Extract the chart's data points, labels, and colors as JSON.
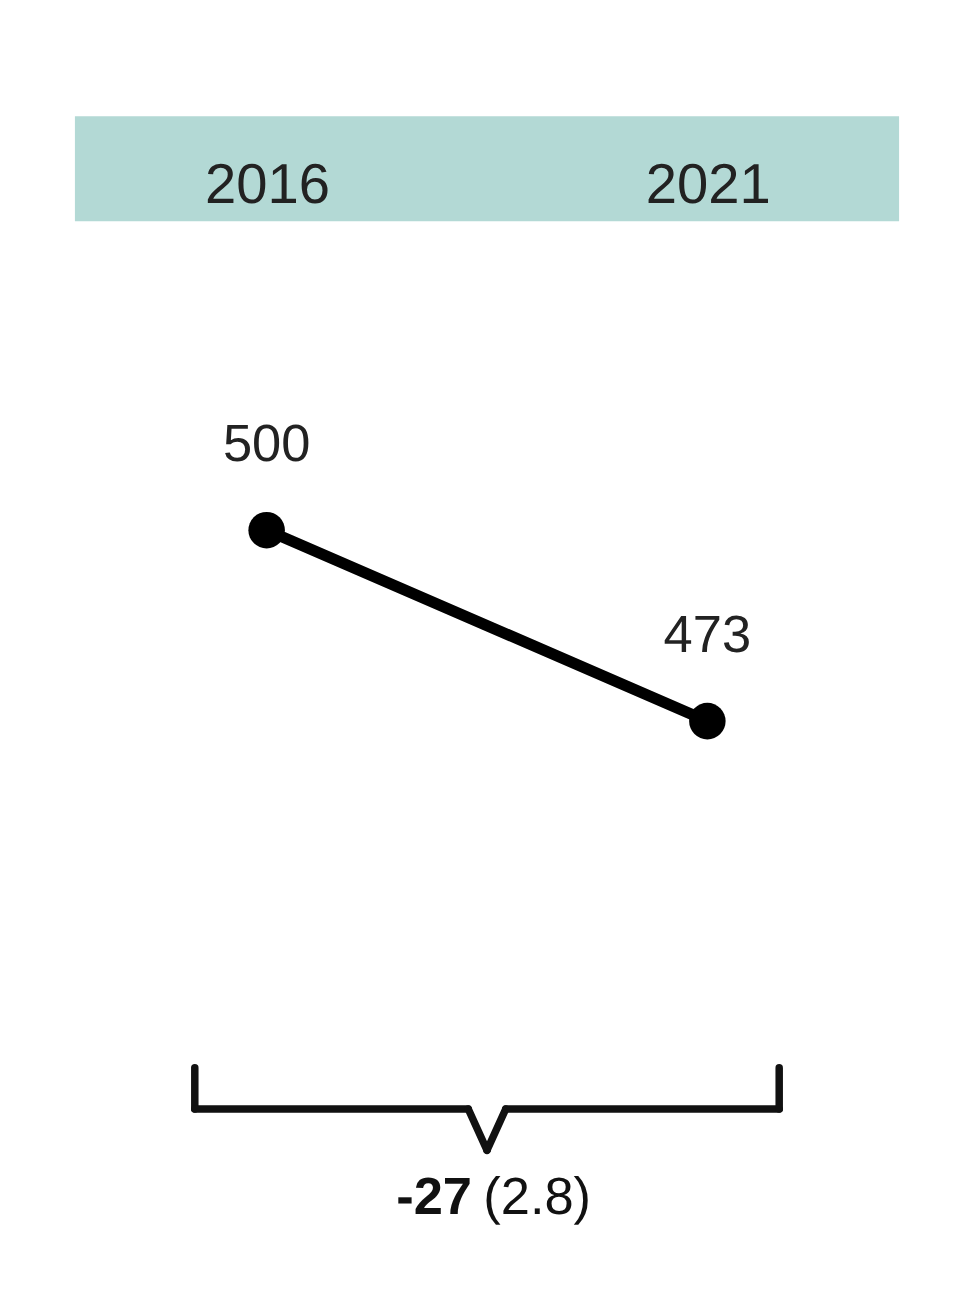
{
  "chart_data": {
    "type": "line",
    "categories": [
      "2016",
      "2021"
    ],
    "series": [
      {
        "color": "#000000",
        "values": [
          500,
          473
        ]
      }
    ],
    "data_labels": true,
    "marker": "circle",
    "line_style": "solid",
    "annotations": [
      "-27 (2.8)"
    ]
  }
}
